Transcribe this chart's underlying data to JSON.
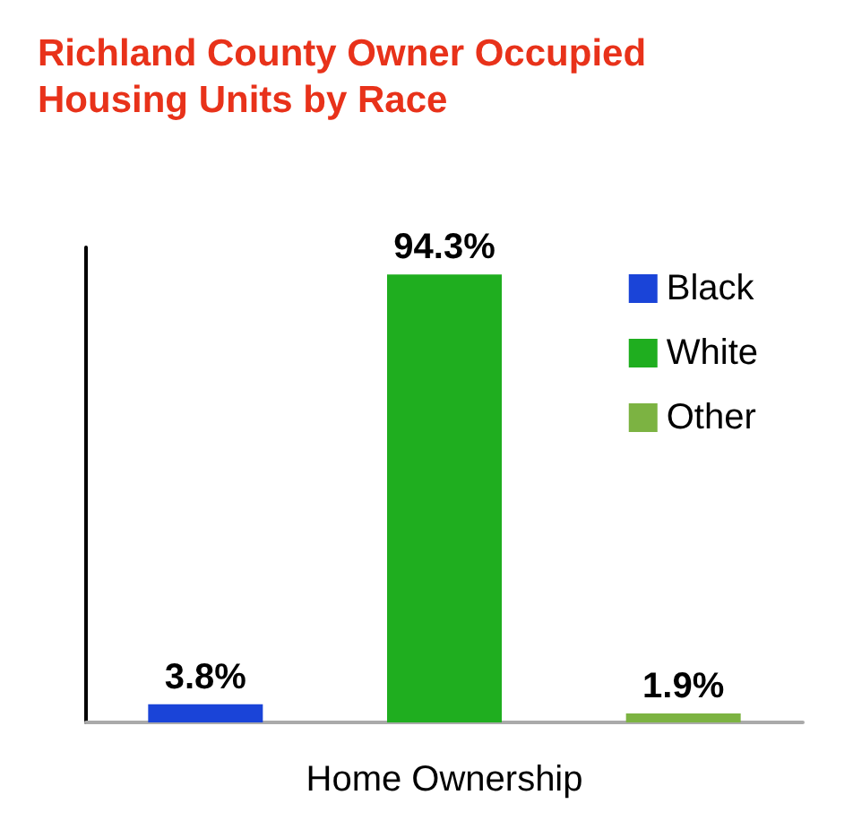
{
  "chart_data": {
    "type": "bar",
    "title": "Richland County Owner Occupied\nHousing Units by Race",
    "xlabel": "Home Ownership",
    "categories": [
      null,
      null,
      null
    ],
    "stacked": true,
    "series": [
      {
        "name": "Black",
        "color": "#1a44d8",
        "values": [
          3.8,
          null,
          null
        ],
        "value_labels": [
          "3.8%",
          null,
          null
        ]
      },
      {
        "name": "White",
        "color": "#1fae1f",
        "values": [
          null,
          94.3,
          null
        ],
        "value_labels": [
          null,
          "94.3%",
          null
        ]
      },
      {
        "name": "Other",
        "color": "#7cb342",
        "values": [
          null,
          null,
          1.9
        ],
        "value_labels": [
          null,
          null,
          "1.9%"
        ]
      }
    ],
    "legend": "top right",
    "grid": false
  }
}
